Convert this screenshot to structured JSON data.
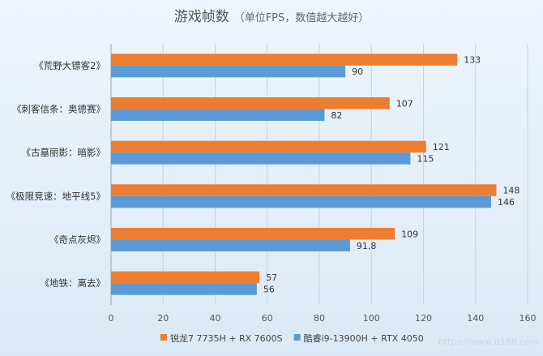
{
  "chart_data": {
    "type": "bar",
    "orientation": "horizontal",
    "title": "游戏帧数",
    "subtitle": "（单位FPS，数值越大越好）",
    "categories": [
      "《荒野大镖客2》",
      "《刺客信条：奥德赛》",
      "《古墓丽影：暗影》",
      "《极限竞速：地平线5》",
      "《奇点灰烬》",
      "《地铁：离去》"
    ],
    "series": [
      {
        "name": "锐龙7 7735H + RX 7600S",
        "color": "#ed7d31",
        "values": [
          133,
          107,
          121,
          148,
          109,
          57
        ],
        "labels": [
          "133",
          "107",
          "121",
          "148",
          "109",
          "57"
        ]
      },
      {
        "name": "酷睿i9-13900H + RTX 4050",
        "color": "#5b9bd5",
        "values": [
          90,
          82,
          115,
          146,
          91.8,
          56
        ],
        "labels": [
          "90",
          "82",
          "115",
          "146",
          "91.8",
          "56"
        ]
      }
    ],
    "xlim": [
      0,
      160
    ],
    "xticks": [
      "0",
      "20",
      "40",
      "60",
      "80",
      "100",
      "120",
      "140",
      "160"
    ],
    "grid": true,
    "legend_position": "bottom"
  },
  "watermark": "https://www.it168.com"
}
